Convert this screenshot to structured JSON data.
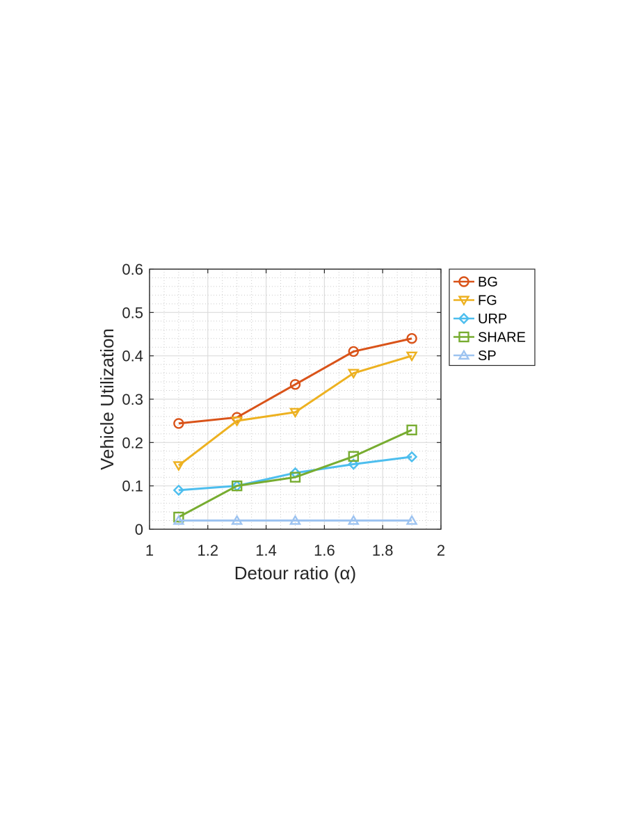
{
  "chart_data": {
    "type": "line",
    "xlabel": "Detour ratio (α)",
    "ylabel": "Vehicle Utilization",
    "xlim": [
      1,
      2
    ],
    "ylim": [
      0,
      0.6
    ],
    "xticks": [
      1,
      1.2,
      1.4,
      1.6,
      1.8,
      2
    ],
    "yticks": [
      0,
      0.1,
      0.2,
      0.3,
      0.4,
      0.5,
      0.6
    ],
    "grid": "major and minor",
    "legend_position": "outside-top-right",
    "x": [
      1.1,
      1.3,
      1.5,
      1.7,
      1.9
    ],
    "series": [
      {
        "name": "BG",
        "marker": "circle",
        "color": "#D95319",
        "values": [
          0.244,
          0.258,
          0.334,
          0.41,
          0.44
        ]
      },
      {
        "name": "FG",
        "marker": "triangle-down",
        "color": "#EDB120",
        "values": [
          0.147,
          0.25,
          0.27,
          0.36,
          0.4
        ]
      },
      {
        "name": "URP",
        "marker": "diamond",
        "color": "#4DBEEE",
        "values": [
          0.09,
          0.1,
          0.13,
          0.15,
          0.167
        ]
      },
      {
        "name": "SHARE",
        "marker": "square",
        "color": "#77AC30",
        "values": [
          0.028,
          0.1,
          0.12,
          0.168,
          0.229
        ]
      },
      {
        "name": "SP",
        "marker": "triangle-up",
        "color": "#9DC3F0",
        "values": [
          0.02,
          0.02,
          0.02,
          0.02,
          0.02
        ]
      }
    ]
  }
}
